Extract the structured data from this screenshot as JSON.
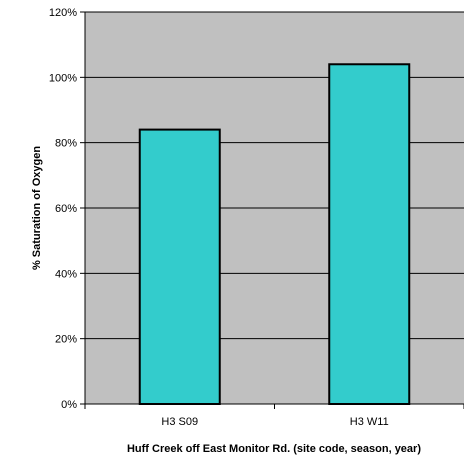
{
  "chart_data": {
    "type": "bar",
    "categories": [
      "H3 S09",
      "H3 W11"
    ],
    "values": [
      84,
      104
    ],
    "xlabel": "Huff Creek off East Monitor Rd. (site code, season, year)",
    "ylabel": "% Saturation of Oxygen",
    "ylim": [
      0,
      120
    ],
    "yticks": [
      "0%",
      "20%",
      "40%",
      "60%",
      "80%",
      "100%",
      "120%"
    ],
    "grid": true,
    "legend": "none",
    "colors": {
      "plot_background": "#c0c0c0",
      "bar_fill": "#33cccc",
      "bar_stroke": "#000000",
      "gridline": "#000000"
    }
  }
}
